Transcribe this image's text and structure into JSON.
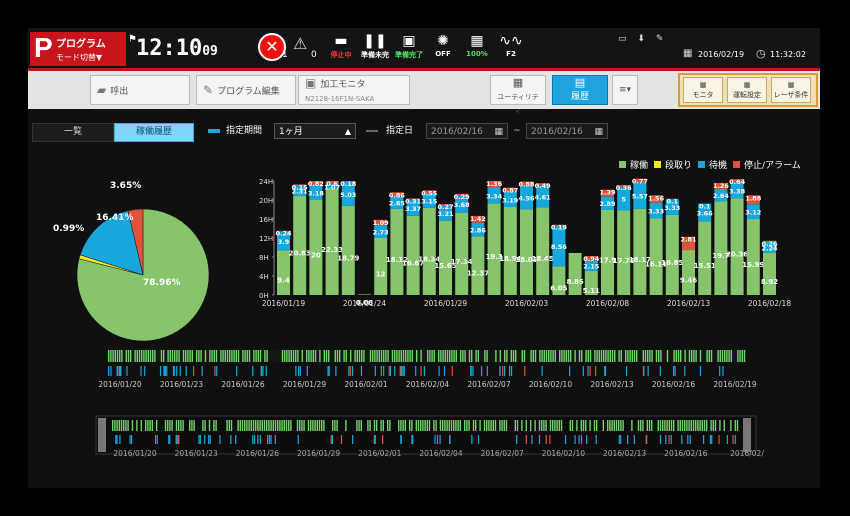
{
  "header": {
    "mode_letter": "P",
    "program_label": "プログラム",
    "mode_switch": "モード切替▼",
    "clock_hm": "12:10",
    "clock_sec": "09",
    "alarm_count": "1",
    "warning_count": "0",
    "status_items": [
      {
        "icon": "stop-icon",
        "label": "停止中",
        "color": "#ff3b30"
      },
      {
        "icon": "pause-icon",
        "label": "準備未完",
        "color": "#ffffff"
      },
      {
        "icon": "ready-icon",
        "label": "準備完了",
        "color": "#52e36b"
      },
      {
        "icon": "laser-icon",
        "label": "OFF",
        "color": "#ffffff"
      },
      {
        "icon": "power-icon",
        "label": "100%",
        "color": "#52e36b"
      },
      {
        "icon": "wave-icon",
        "label": "F2",
        "color": "#ffffff"
      }
    ],
    "date": "2016/02/19",
    "time": "11:32:02"
  },
  "toolbar": {
    "call_label": "呼出",
    "program_edit_label": "プログラム編集",
    "monitor_label": "加工モニタ",
    "monitor_sub": "N2128-16F1N-SAKA",
    "utility_label": "ユーティリティ",
    "history_label": "履歴",
    "right_buttons": [
      "モニタ",
      "運転設定",
      "レーザ条件"
    ]
  },
  "filter": {
    "tab_list": "一覧",
    "tab_history": "稼働履歴",
    "period_label": "指定期間",
    "period_value": "1ヶ月",
    "date_label": "指定日",
    "date_from": "2016/02/16",
    "date_sep": "~",
    "date_to": "2016/02/16"
  },
  "legend": [
    {
      "name": "稼働",
      "color": "#86c56b"
    },
    {
      "name": "段取り",
      "color": "#f1e42a"
    },
    {
      "name": "待機",
      "color": "#16a7dc"
    },
    {
      "name": "停止/アラーム",
      "color": "#e0523a"
    }
  ],
  "chart_data": [
    {
      "type": "pie",
      "labels": [
        "稼働",
        "段取り",
        "待機",
        "停止/アラーム"
      ],
      "values": [
        78.96,
        0.99,
        16.41,
        3.65
      ],
      "value_labels": [
        "78.96%",
        "0.99%",
        "16.41%",
        "3.65%"
      ],
      "colors": [
        "#86c56b",
        "#f1e42a",
        "#16a7dc",
        "#e0523a"
      ]
    },
    {
      "type": "bar",
      "stacked": true,
      "y_ticks": [
        "24H",
        "20H",
        "16H",
        "12H",
        "8H",
        "4H",
        "0H"
      ],
      "ylim": [
        0,
        24
      ],
      "x_tick_labels": [
        "2016/01/19",
        "2016/01/24",
        "2016/01/29",
        "2016/02/03",
        "2016/02/08",
        "2016/02/13",
        "2016/02/18"
      ],
      "days": [
        {
          "w": 9.4,
          "r": 0.24,
          "b": 3.9,
          "wl": "9.4",
          "rl": "0.24",
          "bl": "3.9"
        },
        {
          "w": 20.83,
          "r": 0.15,
          "b": 2.31,
          "wl": "20.83",
          "rl": "0.15",
          "bl": "2.31"
        },
        {
          "w": 20,
          "r": 0.82,
          "b": 3.18,
          "wl": "20",
          "rl": "0.82",
          "bl": "3.18"
        },
        {
          "w": 22.33,
          "r": 0.6,
          "b": 1.07,
          "wl": "22.33",
          "rl": "0.6",
          "bl": "1.07"
        },
        {
          "w": 18.79,
          "r": 0.18,
          "b": 5.03,
          "wl": "18.79",
          "rl": "0.18",
          "bl": "5.03"
        },
        {
          "w": 0.08,
          "r": 0.09,
          "b": 0,
          "wl": "0.08",
          "rl": "",
          "bl": ""
        },
        {
          "w": 12,
          "r": 1.09,
          "b": 2.73,
          "wl": "12",
          "rl": "1.09",
          "bl": "2.73"
        },
        {
          "w": 18.12,
          "r": 0.86,
          "b": 2.65,
          "wl": "18.12",
          "rl": "0.86",
          "bl": "2.65"
        },
        {
          "w": 16.67,
          "r": 0.31,
          "b": 3.37,
          "wl": "16.67",
          "rl": "0.31",
          "bl": "3.37"
        },
        {
          "w": 18.34,
          "r": 0.55,
          "b": 3.15,
          "wl": "18.34",
          "rl": "0.55",
          "bl": "3.15"
        },
        {
          "w": 15.65,
          "r": 0.27,
          "b": 3.21,
          "wl": "15.65",
          "rl": "0.27",
          "bl": "3.21"
        },
        {
          "w": 17.34,
          "r": 0.29,
          "b": 3.68,
          "wl": "17.34",
          "rl": "0.29",
          "bl": "3.68"
        },
        {
          "w": 12.37,
          "r": 1.42,
          "b": 2.86,
          "wl": "12.37",
          "rl": "1.42",
          "bl": "2.86"
        },
        {
          "w": 19.3,
          "r": 1.36,
          "b": 3.34,
          "wl": "19.3",
          "rl": "1.36",
          "bl": "3.34"
        },
        {
          "w": 18.54,
          "r": 0.87,
          "b": 3.19,
          "wl": "18.54",
          "rl": "0.87",
          "bl": "3.19"
        },
        {
          "w": 18.05,
          "r": 0.88,
          "b": 4.96,
          "wl": "18.05",
          "rl": "0.88",
          "bl": "4.96"
        },
        {
          "w": 18.45,
          "r": 0.49,
          "b": 4.61,
          "wl": "18.45",
          "rl": "0.49",
          "bl": "4.61"
        },
        {
          "w": 6.05,
          "r": 0.19,
          "b": 8.56,
          "wl": "6.05",
          "rl": "0.19",
          "bl": "8.56"
        },
        {
          "w": 8.85,
          "r": 0,
          "b": 0,
          "wl": "8.85",
          "rl": "",
          "bl": ""
        },
        {
          "w": 5.11,
          "r": 0.94,
          "b": 2.15,
          "wl": "5.11",
          "rl": "0.94",
          "bl": "2.15"
        },
        {
          "w": 17.9,
          "r": 1.39,
          "b": 2.89,
          "wl": "17.9",
          "rl": "1.39",
          "bl": "2.89"
        },
        {
          "w": 17.78,
          "r": 0.36,
          "b": 5,
          "wl": "17.78",
          "rl": "0.36",
          "bl": "5"
        },
        {
          "w": 18.17,
          "r": 0.77,
          "b": 5.57,
          "wl": "18.17",
          "rl": "0.77",
          "bl": "5.57"
        },
        {
          "w": 16.11,
          "r": 1.56,
          "b": 3.33,
          "wl": "16.11",
          "rl": "1.56",
          "bl": "3.33"
        },
        {
          "w": 16.85,
          "r": 0.1,
          "b": 3.33,
          "wl": "16.85",
          "rl": "0.1",
          "bl": "3.33"
        },
        {
          "w": 9.46,
          "r": 2.81,
          "b": 0,
          "wl": "9.46",
          "rl": "2.81",
          "bl": ""
        },
        {
          "w": 15.51,
          "r": 0.1,
          "b": 3.66,
          "wl": "15.51",
          "rl": "0.1",
          "bl": "3.66"
        },
        {
          "w": 19.7,
          "r": 1.26,
          "b": 2.64,
          "wl": "19.7",
          "rl": "1.26",
          "bl": "2.64"
        },
        {
          "w": 20.36,
          "r": 0.64,
          "b": 3.38,
          "wl": "20.36",
          "rl": "0.64",
          "bl": "3.38"
        },
        {
          "w": 15.99,
          "r": 1.88,
          "b": 3.12,
          "wl": "15.99",
          "rl": "1.88",
          "bl": "3.12"
        },
        {
          "w": 8.92,
          "r": 0.26,
          "b": 2.24,
          "wl": "8.92",
          "rl": "0.26",
          "bl": "2.24"
        }
      ]
    }
  ],
  "timeline1_labels": [
    "2016/01/20",
    "2016/01/23",
    "2016/01/26",
    "2016/01/29",
    "2016/02/01",
    "2016/02/04",
    "2016/02/07",
    "2016/02/10",
    "2016/02/13",
    "2016/02/16",
    "2016/02/19"
  ],
  "timeline2_labels": [
    "2016/01/20",
    "2016/01/23",
    "2016/01/26",
    "2016/01/29",
    "2016/02/01",
    "2016/02/04",
    "2016/02/07",
    "2016/02/10",
    "2016/02/13",
    "2016/02/16",
    "2016/02/"
  ]
}
